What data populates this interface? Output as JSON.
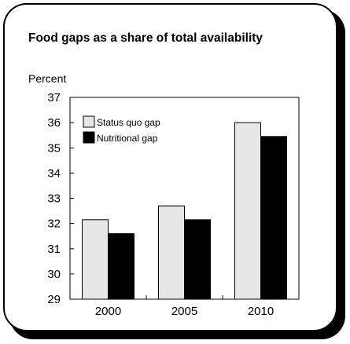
{
  "chart_data": {
    "type": "bar",
    "title": "Food gaps as a share of total availability",
    "ylabel": "Percent",
    "xlabel": "",
    "categories": [
      "2000",
      "2005",
      "2010"
    ],
    "series": [
      {
        "name": "Status quo gap",
        "values": [
          32.15,
          32.7,
          36.0
        ],
        "color": "#e6e6e6"
      },
      {
        "name": "Nutritional gap",
        "values": [
          31.6,
          32.15,
          35.45
        ],
        "color": "#000000"
      }
    ],
    "ylim": [
      29,
      37
    ],
    "yticks": [
      "29",
      "30",
      "31",
      "32",
      "33",
      "34",
      "35",
      "36",
      "37"
    ],
    "grid": false,
    "legend_position": "top-left"
  }
}
